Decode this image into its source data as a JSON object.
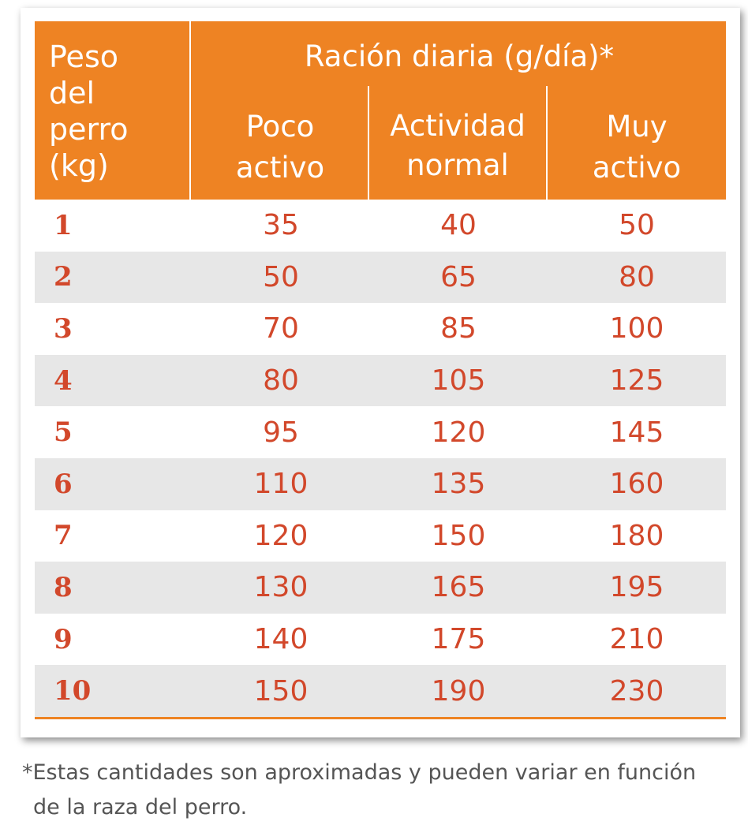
{
  "header": {
    "weight_label_lines": [
      "Peso",
      "del",
      "perro",
      "(kg)"
    ],
    "group_label": "Ración diaria (g/día)*",
    "columns": [
      {
        "lines": [
          "Poco",
          "activo"
        ]
      },
      {
        "lines": [
          "Actividad",
          "normal"
        ]
      },
      {
        "lines": [
          "Muy",
          "activo"
        ]
      }
    ]
  },
  "rows": [
    {
      "weight": "1",
      "values": [
        "35",
        "40",
        "50"
      ]
    },
    {
      "weight": "2",
      "values": [
        "50",
        "65",
        "80"
      ]
    },
    {
      "weight": "3",
      "values": [
        "70",
        "85",
        "100"
      ]
    },
    {
      "weight": "4",
      "values": [
        "80",
        "105",
        "125"
      ]
    },
    {
      "weight": "5",
      "values": [
        "95",
        "120",
        "145"
      ]
    },
    {
      "weight": "6",
      "values": [
        "110",
        "135",
        "160"
      ]
    },
    {
      "weight": "7",
      "values": [
        "120",
        "150",
        "180"
      ]
    },
    {
      "weight": "8",
      "values": [
        "130",
        "165",
        "195"
      ]
    },
    {
      "weight": "9",
      "values": [
        "140",
        "175",
        "210"
      ]
    },
    {
      "weight": "10",
      "values": [
        "150",
        "190",
        "230"
      ]
    }
  ],
  "footnote": {
    "line1": "*Estas cantidades son aproximadas y pueden variar en función",
    "line2": "de la raza del perro."
  },
  "colors": {
    "header_bg": "#ee8323",
    "value_text": "#d2482b",
    "shaded_row": "#e7e7e7"
  }
}
